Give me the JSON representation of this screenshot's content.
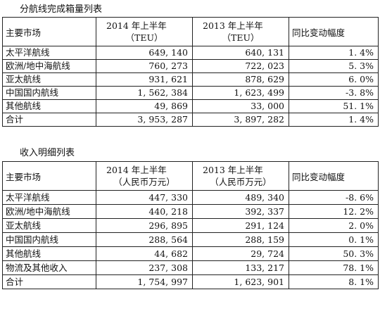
{
  "volume_table": {
    "caption": "分航线完成箱量列表",
    "headers": {
      "market": "主要市场",
      "y2014_line1": "2014 年上半年",
      "y2014_line2": "（TEU）",
      "y2013_line1": "2013 年上半年",
      "y2013_line2": "（TEU）",
      "change": "同比变动幅度"
    },
    "rows": [
      {
        "market": "太平洋航线",
        "y2014": "649, 140",
        "y2013": "640, 131",
        "change": "1. 4%"
      },
      {
        "market": "欧洲/地中海航线",
        "y2014": "760, 273",
        "y2013": "722, 023",
        "change": "5. 3%"
      },
      {
        "market": "亚太航线",
        "y2014": "931, 621",
        "y2013": "878, 629",
        "change": "6. 0%"
      },
      {
        "market": "中国国内航线",
        "y2014": "1, 562, 384",
        "y2013": "1, 623, 499",
        "change": "-3. 8%"
      },
      {
        "market": "其他航线",
        "y2014": "49, 869",
        "y2013": "33, 000",
        "change": "51. 1%"
      },
      {
        "market": "合计",
        "y2014": "3, 953, 287",
        "y2013": "3, 897, 282",
        "change": "1. 4%"
      }
    ]
  },
  "revenue_table": {
    "caption": "收入明细列表",
    "headers": {
      "market": "主要市场",
      "y2014_line1": "2014 年上半年",
      "y2014_line2": "（人民币万元）",
      "y2013_line1": "2013 年上半年",
      "y2013_line2": "（人民币万元）",
      "change": "同比变动幅度"
    },
    "rows": [
      {
        "market": "太平洋航线",
        "y2014": "447, 330",
        "y2013": "489, 340",
        "change": "-8. 6%"
      },
      {
        "market": "欧洲/地中海航线",
        "y2014": "440, 218",
        "y2013": "392, 337",
        "change": "12. 2%"
      },
      {
        "market": "亚太航线",
        "y2014": "296, 895",
        "y2013": "291, 124",
        "change": "2. 0%"
      },
      {
        "market": "中国国内航线",
        "y2014": "288, 564",
        "y2013": "288, 159",
        "change": "0. 1%"
      },
      {
        "market": "其他航线",
        "y2014": "44, 682",
        "y2013": "29, 724",
        "change": "50. 3%"
      },
      {
        "market": "物流及其他收入",
        "y2014": "237, 308",
        "y2013": "133, 217",
        "change": "78. 1%"
      },
      {
        "market": "合计",
        "y2014": "1, 754, 997",
        "y2013": "1, 623, 901",
        "change": "8. 1%"
      }
    ]
  }
}
